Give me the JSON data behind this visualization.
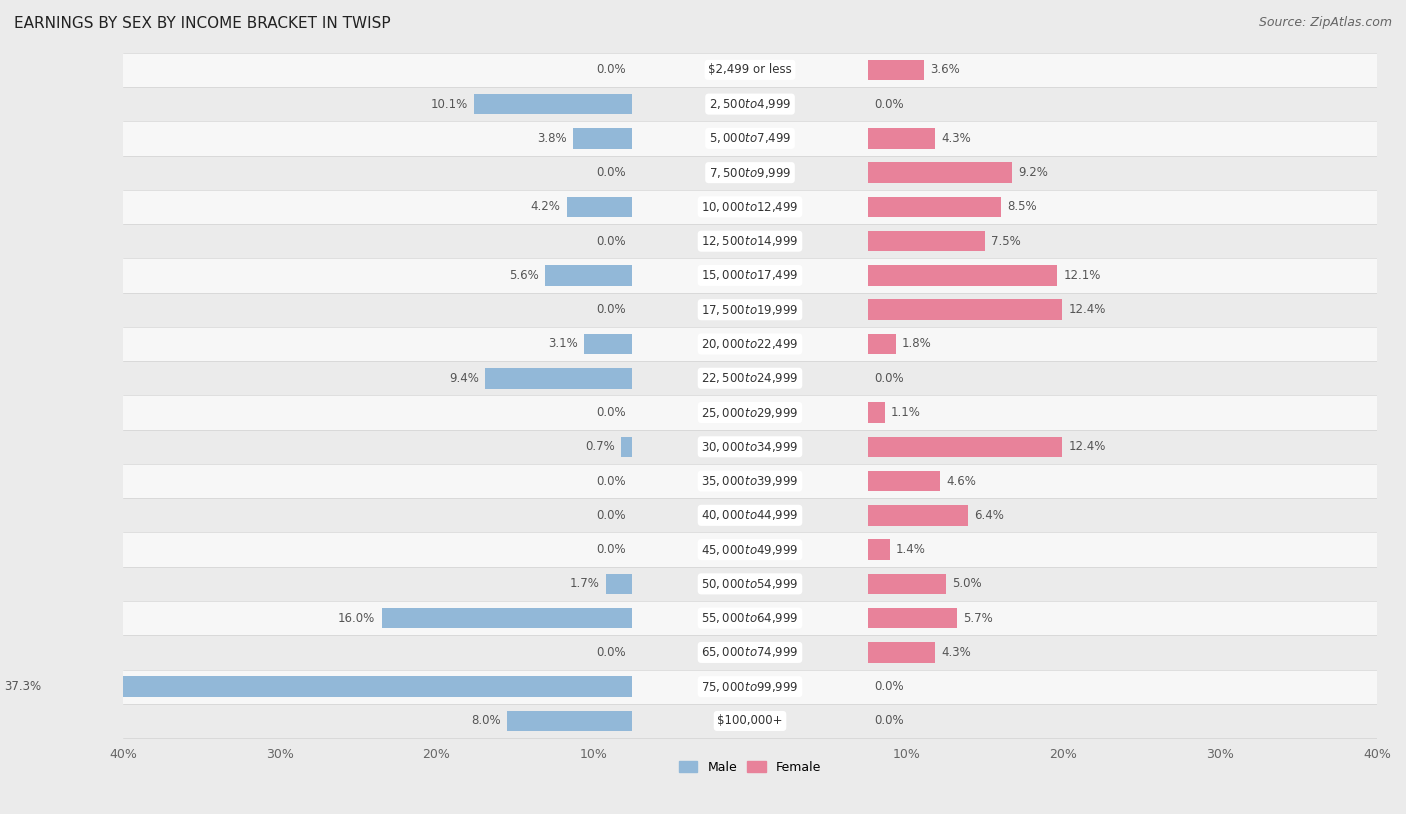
{
  "title": "EARNINGS BY SEX BY INCOME BRACKET IN TWISP",
  "source": "Source: ZipAtlas.com",
  "categories": [
    "$2,499 or less",
    "$2,500 to $4,999",
    "$5,000 to $7,499",
    "$7,500 to $9,999",
    "$10,000 to $12,499",
    "$12,500 to $14,999",
    "$15,000 to $17,499",
    "$17,500 to $19,999",
    "$20,000 to $22,499",
    "$22,500 to $24,999",
    "$25,000 to $29,999",
    "$30,000 to $34,999",
    "$35,000 to $39,999",
    "$40,000 to $44,999",
    "$45,000 to $49,999",
    "$50,000 to $54,999",
    "$55,000 to $64,999",
    "$65,000 to $74,999",
    "$75,000 to $99,999",
    "$100,000+"
  ],
  "male": [
    0.0,
    10.1,
    3.8,
    0.0,
    4.2,
    0.0,
    5.6,
    0.0,
    3.1,
    9.4,
    0.0,
    0.7,
    0.0,
    0.0,
    0.0,
    1.7,
    16.0,
    0.0,
    37.3,
    8.0
  ],
  "female": [
    3.6,
    0.0,
    4.3,
    9.2,
    8.5,
    7.5,
    12.1,
    12.4,
    1.8,
    0.0,
    1.1,
    12.4,
    4.6,
    6.4,
    1.4,
    5.0,
    5.7,
    4.3,
    0.0,
    0.0
  ],
  "male_color": "#92b8d8",
  "female_color": "#e8829a",
  "male_label": "Male",
  "female_label": "Female",
  "xlim": 40.0,
  "bg_color": "#ebebeb",
  "row_color_even": "#f7f7f7",
  "row_color_odd": "#ebebeb",
  "title_fontsize": 11,
  "source_fontsize": 9,
  "label_fontsize": 8.5,
  "tick_fontsize": 9,
  "value_fontsize": 8.5
}
